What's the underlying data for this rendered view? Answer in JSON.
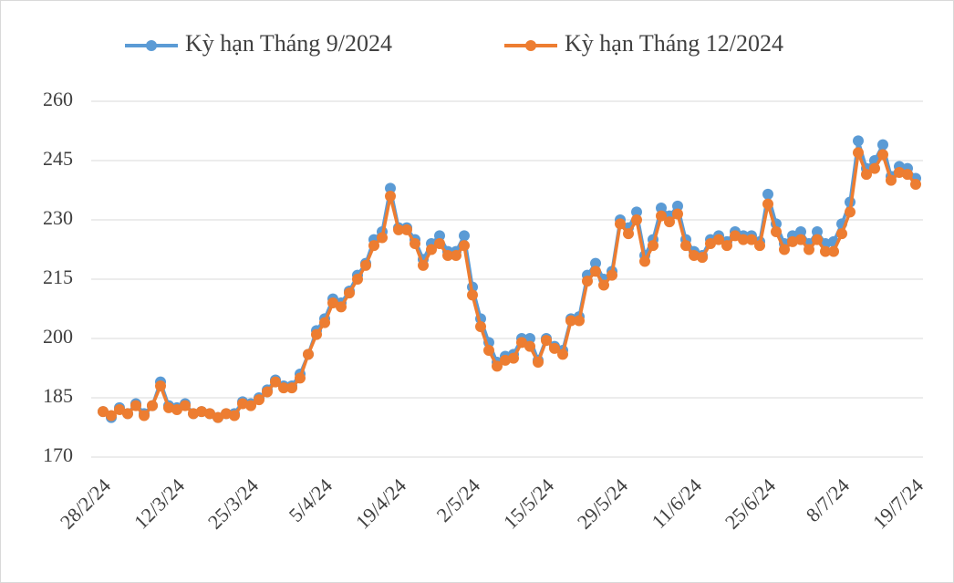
{
  "chart_data": {
    "type": "line",
    "categories": [
      "28/2/24",
      null,
      null,
      null,
      null,
      null,
      null,
      null,
      null,
      "12/3/24",
      null,
      null,
      null,
      null,
      null,
      null,
      null,
      null,
      "25/3/24",
      null,
      null,
      null,
      null,
      null,
      null,
      null,
      null,
      "5/4/24",
      null,
      null,
      null,
      null,
      null,
      null,
      null,
      null,
      "19/4/24",
      null,
      null,
      null,
      null,
      null,
      null,
      null,
      null,
      "2/5/24",
      null,
      null,
      null,
      null,
      null,
      null,
      null,
      null,
      "15/5/24",
      null,
      null,
      null,
      null,
      null,
      null,
      null,
      null,
      "29/5/24",
      null,
      null,
      null,
      null,
      null,
      null,
      null,
      null,
      "11/6/24",
      null,
      null,
      null,
      null,
      null,
      null,
      null,
      null,
      "25/6/24",
      null,
      null,
      null,
      null,
      null,
      null,
      null,
      null,
      "8/7/24",
      null,
      null,
      null,
      null,
      null,
      null,
      null,
      null,
      "19/7/24"
    ],
    "series": [
      {
        "name": "Kỳ hạn Tháng 9/2024",
        "color": "#5b9bd5",
        "values": [
          181.5,
          180,
          182.5,
          181,
          183.5,
          181,
          183,
          189,
          183,
          182.5,
          183.5,
          181,
          181.5,
          181,
          180,
          181,
          181,
          184,
          183.5,
          185,
          187,
          189.5,
          188,
          188,
          191,
          196,
          202,
          205,
          210,
          209,
          212,
          216,
          219,
          225,
          227,
          238,
          228,
          228,
          225,
          220,
          224,
          226,
          222,
          222,
          226,
          213,
          205,
          199,
          194,
          195.5,
          196,
          200,
          200,
          194.5,
          200,
          198,
          197,
          205,
          205.5,
          216,
          219,
          215,
          217,
          230,
          228,
          232,
          221,
          225,
          233,
          231,
          233.5,
          225,
          222,
          221,
          225,
          226,
          224.5,
          227,
          226,
          226,
          224.5,
          236.5,
          229,
          224,
          226,
          227,
          224,
          227,
          224,
          224.5,
          229,
          234.5,
          250,
          243,
          245,
          249,
          241,
          243.5,
          243,
          240.5
        ]
      },
      {
        "name": "Kỳ hạn Tháng 12/2024",
        "color": "#ed7d31",
        "values": [
          181.5,
          180.5,
          182,
          181,
          183,
          180.5,
          183,
          188,
          182.5,
          182,
          183,
          181,
          181.5,
          181,
          180,
          181,
          180.5,
          183.5,
          183,
          184.5,
          186.5,
          189,
          187.5,
          187.5,
          190,
          196,
          201,
          204,
          209,
          208,
          211.5,
          215,
          218.5,
          223.5,
          225.5,
          236,
          227.5,
          227.5,
          224,
          218.5,
          222.5,
          224,
          221,
          221,
          223.5,
          211,
          203,
          197,
          193,
          194.5,
          195,
          199,
          198,
          194,
          199.5,
          197.5,
          196,
          204.5,
          204.5,
          214.5,
          217,
          213.5,
          216,
          229,
          226.5,
          230,
          219.5,
          223.5,
          231,
          229.5,
          231.5,
          223.5,
          221,
          220.5,
          224,
          225,
          223.5,
          226,
          225,
          225,
          223.5,
          234,
          227,
          222.5,
          224.5,
          225,
          222.5,
          225,
          222,
          222,
          226.5,
          232,
          247,
          241.5,
          243,
          246.5,
          240,
          242,
          241.5,
          239
        ]
      }
    ],
    "ylim": [
      170,
      260
    ],
    "yticks": [
      170,
      185,
      200,
      215,
      230,
      245,
      260
    ],
    "grid": true,
    "legend": "top"
  }
}
